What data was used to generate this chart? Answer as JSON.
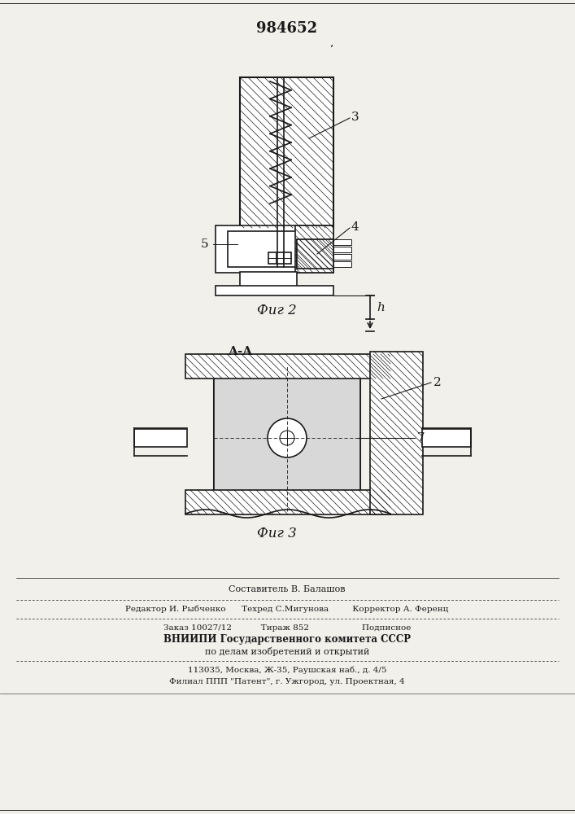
{
  "patent_number": "984652",
  "background_color": "#f2f0eb",
  "line_color": "#1a1a1a",
  "fig2_label": "Фиг 2",
  "fig3_label": "Фиг 3",
  "section_label": "A-A",
  "label_3": "3",
  "label_4": "4",
  "label_5": "5",
  "label_h": "h",
  "label_2": "2",
  "label_7": "7",
  "footer_line1": "Составитель В. Балашов",
  "footer_line2": "Редактор И. Рыбченко      Техред С.Мигунова         Корректор А. Ференц",
  "footer_line3": "Заказ 10027/12           Тираж 852                    Подписное",
  "footer_line4": "ВНИИПИ Государственного комитета СССР",
  "footer_line5": "по делам изобретений и открытий",
  "footer_line6": "113035, Москва, Ж-35, Раушская наб., д. 4/5",
  "footer_line7": "Филиал ППП \"Патент\", г. Ужгород, ул. Проектная, 4"
}
